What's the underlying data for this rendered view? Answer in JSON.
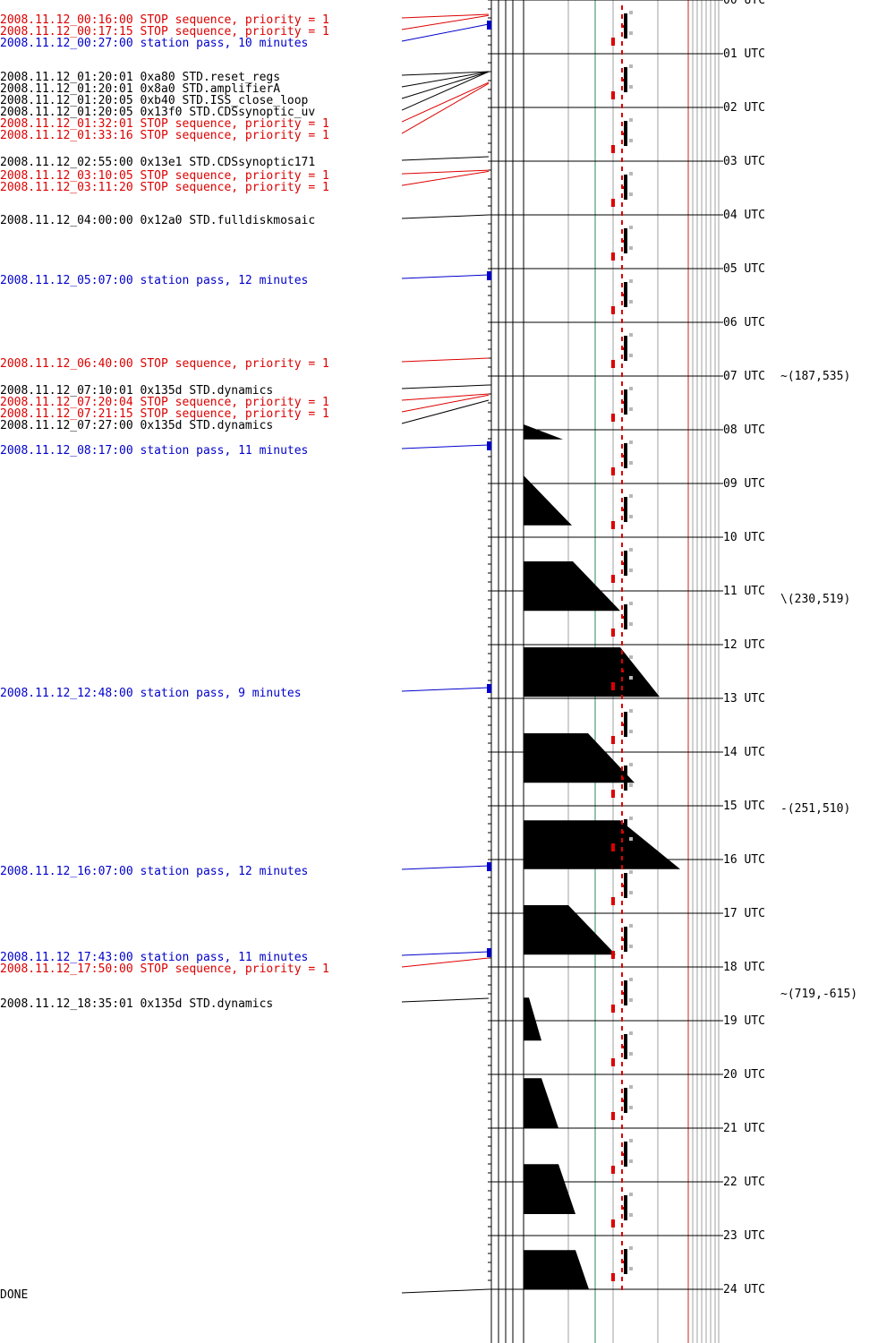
{
  "colors": {
    "event": "#000000",
    "stop": "#dd0000",
    "pass": "#0000cc",
    "timeline_grid": "#000000",
    "green_line": "#2e8b57",
    "gray_line": "#a0a0a0",
    "red_vertical": "#cc2222",
    "marker_gray": "#b8b8b8"
  },
  "events": [
    {
      "text": "2008.11.12_00:16:00 STOP sequence, priority = 1",
      "kind": "stop",
      "hour": 0.267
    },
    {
      "text": "2008.11.12_00:17:15 STOP sequence, priority = 1",
      "kind": "stop",
      "hour": 0.288
    },
    {
      "text": "2008.11.12_00:27:00 station pass, 10 minutes",
      "kind": "pass",
      "hour": 0.45
    },
    {
      "text": "2008.11.12_01:20:01  0xa80 STD.reset_regs",
      "kind": "event",
      "hour": 1.334
    },
    {
      "text": "2008.11.12_01:20:01  0x8a0 STD.amplifierA",
      "kind": "event",
      "hour": 1.334
    },
    {
      "text": "2008.11.12_01:20:05  0xb40 STD.ISS_close_loop",
      "kind": "event",
      "hour": 1.335
    },
    {
      "text": "2008.11.12_01:20:05 0x13f0 STD.CDSsynoptic_uv",
      "kind": "event",
      "hour": 1.335
    },
    {
      "text": "2008.11.12_01:32:01 STOP sequence, priority = 1",
      "kind": "stop",
      "hour": 1.534
    },
    {
      "text": "2008.11.12_01:33:16 STOP sequence, priority = 1",
      "kind": "stop",
      "hour": 1.554
    },
    {
      "text": "2008.11.12_02:55:00 0x13e1 STD.CDSsynoptic171",
      "kind": "event",
      "hour": 2.917
    },
    {
      "text": "2008.11.12_03:10:05 STOP sequence, priority = 1",
      "kind": "stop",
      "hour": 3.168
    },
    {
      "text": "2008.11.12_03:11:20 STOP sequence, priority = 1",
      "kind": "stop",
      "hour": 3.189
    },
    {
      "text": "2008.11.12_04:00:00 0x12a0 STD.fulldiskmosaic",
      "kind": "event",
      "hour": 4.0
    },
    {
      "text": "2008.11.12_05:07:00 station pass, 12 minutes",
      "kind": "pass",
      "hour": 5.117
    },
    {
      "text": "2008.11.12_06:40:00 STOP sequence, priority = 1",
      "kind": "stop",
      "hour": 6.667
    },
    {
      "text": "2008.11.12_07:10:01 0x135d STD.dynamics",
      "kind": "event",
      "hour": 7.167
    },
    {
      "text": "2008.11.12_07:20:04 STOP sequence, priority = 1",
      "kind": "stop",
      "hour": 7.334
    },
    {
      "text": "2008.11.12_07:21:15 STOP sequence, priority = 1",
      "kind": "stop",
      "hour": 7.354
    },
    {
      "text": "2008.11.12_07:27:00 0x135d STD.dynamics",
      "kind": "event",
      "hour": 7.45
    },
    {
      "text": "2008.11.12_08:17:00 station pass, 11 minutes",
      "kind": "pass",
      "hour": 8.283
    },
    {
      "text": "2008.11.12_12:48:00 station pass, 9 minutes",
      "kind": "pass",
      "hour": 12.8
    },
    {
      "text": "2008.11.12_16:07:00 station pass, 12 minutes",
      "kind": "pass",
      "hour": 16.117
    },
    {
      "text": "2008.11.12_17:43:00 station pass, 11 minutes",
      "kind": "pass",
      "hour": 17.717
    },
    {
      "text": "2008.11.12_17:50:00 STOP sequence, priority = 1",
      "kind": "stop",
      "hour": 17.833
    },
    {
      "text": "2008.11.12_18:35:01 0x135d STD.dynamics",
      "kind": "event",
      "hour": 18.584
    },
    {
      "text": "DONE",
      "kind": "event",
      "hour": 24.0
    }
  ],
  "hour_labels": [
    "00 UTC",
    "01 UTC",
    "02 UTC",
    "03 UTC",
    "04 UTC",
    "05 UTC",
    "06 UTC",
    "07 UTC",
    "08 UTC",
    "09 UTC",
    "10 UTC",
    "11 UTC",
    "12 UTC",
    "13 UTC",
    "14 UTC",
    "15 UTC",
    "16 UTC",
    "17 UTC",
    "18 UTC",
    "19 UTC",
    "20 UTC",
    "21 UTC",
    "22 UTC",
    "23 UTC",
    "24 UTC"
  ],
  "pointing": [
    {
      "text": "(187,535)",
      "hour": 7.0,
      "glyph": "~"
    },
    {
      "text": "(230,519)",
      "hour": 11.15,
      "glyph": "\\"
    },
    {
      "text": "(251,510)",
      "hour": 15.05,
      "glyph": "-"
    },
    {
      "text": "(719,-615)",
      "hour": 18.5,
      "glyph": "~"
    }
  ],
  "activity_blocks": [
    {
      "start": 7.9,
      "end": 8.18,
      "width_start": 0,
      "width_end": 44
    },
    {
      "start": 8.85,
      "end": 9.78,
      "width_start": 0,
      "width_end": 54
    },
    {
      "start": 10.45,
      "end": 11.37,
      "width_start": 55,
      "width_end": 108
    },
    {
      "start": 12.05,
      "end": 12.97,
      "width_start": 108,
      "width_end": 152
    },
    {
      "start": 13.65,
      "end": 14.57,
      "width_start": 72,
      "width_end": 124
    },
    {
      "start": 15.27,
      "end": 16.18,
      "width_start": 108,
      "width_end": 175
    },
    {
      "start": 16.85,
      "end": 17.77,
      "width_start": 50,
      "width_end": 103
    },
    {
      "start": 18.57,
      "end": 19.37,
      "width_start": 6,
      "width_end": 20
    },
    {
      "start": 20.07,
      "end": 21.0,
      "width_start": 20,
      "width_end": 39
    },
    {
      "start": 21.67,
      "end": 22.6,
      "width_start": 39,
      "width_end": 58
    },
    {
      "start": 23.27,
      "end": 24.0,
      "width_start": 58,
      "width_end": 73
    }
  ]
}
